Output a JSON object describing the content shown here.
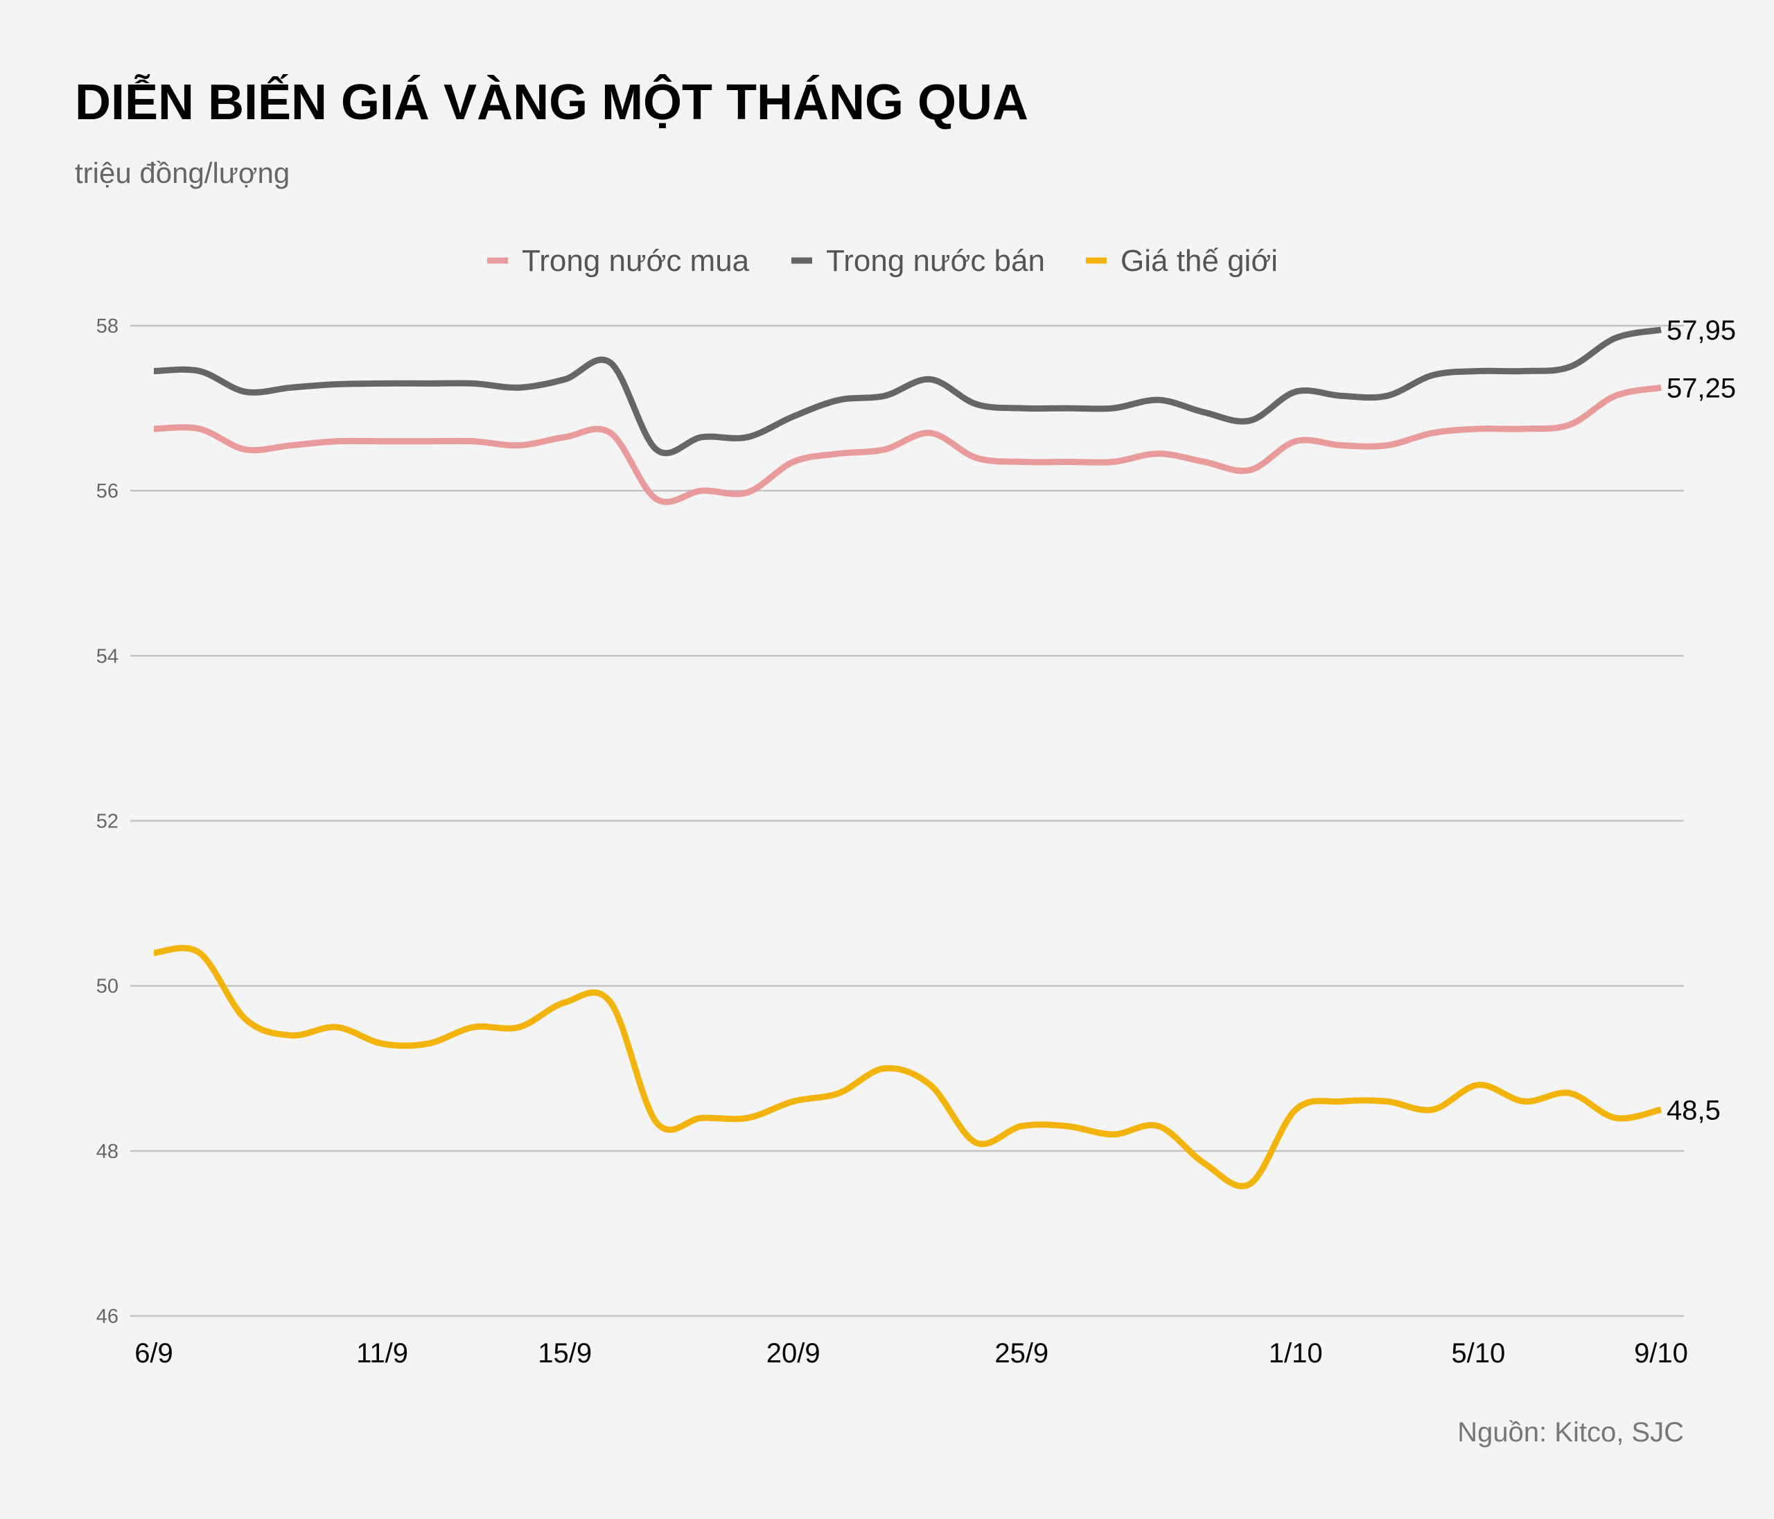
{
  "title": "DIỄN BIẾN GIÁ VÀNG MỘT THÁNG QUA",
  "subtitle": "triệu đồng/lượng",
  "source": "Nguồn: Kitco, SJC",
  "chart_data": {
    "type": "line",
    "title": "DIỄN BIẾN GIÁ VÀNG MỘT THÁNG QUA",
    "ylabel": "triệu đồng/lượng",
    "xlabel": "",
    "ylim": [
      46,
      58
    ],
    "yticks": [
      46,
      48,
      50,
      52,
      54,
      56,
      58
    ],
    "grid": true,
    "legend_position": "top-center",
    "x": [
      "6/9",
      "7/9",
      "8/9",
      "9/9",
      "10/9",
      "11/9",
      "12/9",
      "13/9",
      "14/9",
      "15/9",
      "16/9",
      "17/9",
      "18/9",
      "19/9",
      "20/9",
      "21/9",
      "22/9",
      "23/9",
      "24/9",
      "25/9",
      "26/9",
      "27/9",
      "28/9",
      "29/9",
      "30/9",
      "1/10",
      "2/10",
      "3/10",
      "4/10",
      "5/10",
      "6/10",
      "7/10",
      "8/10",
      "9/10"
    ],
    "xticks": [
      "6/9",
      "11/9",
      "15/9",
      "20/9",
      "25/9",
      "1/10",
      "5/10",
      "9/10"
    ],
    "series": [
      {
        "name": "Trong nước mua",
        "color": "#e99a9a",
        "end_label": "57,25",
        "values": [
          56.75,
          56.75,
          56.5,
          56.55,
          56.6,
          56.6,
          56.6,
          56.6,
          56.55,
          56.65,
          56.7,
          55.9,
          56.0,
          55.98,
          56.35,
          56.45,
          56.5,
          56.7,
          56.4,
          56.35,
          56.35,
          56.35,
          56.45,
          56.35,
          56.25,
          56.6,
          56.55,
          56.55,
          56.7,
          56.75,
          56.75,
          56.8,
          57.15,
          57.25
        ]
      },
      {
        "name": "Trong nước bán",
        "color": "#666666",
        "end_label": "57,95",
        "values": [
          57.45,
          57.45,
          57.2,
          57.25,
          57.29,
          57.3,
          57.3,
          57.3,
          57.25,
          57.35,
          57.55,
          56.5,
          56.65,
          56.65,
          56.9,
          57.1,
          57.15,
          57.35,
          57.05,
          57.0,
          57.0,
          57.0,
          57.1,
          56.95,
          56.85,
          57.2,
          57.15,
          57.15,
          57.4,
          57.45,
          57.45,
          57.5,
          57.85,
          57.95
        ]
      },
      {
        "name": "Giá thế giới",
        "color": "#f2b40c",
        "end_label": "48,5",
        "values": [
          50.4,
          50.4,
          49.6,
          49.4,
          49.5,
          49.3,
          49.3,
          49.5,
          49.5,
          49.8,
          49.8,
          48.35,
          48.4,
          48.4,
          48.6,
          48.7,
          49.0,
          48.8,
          48.1,
          48.3,
          48.3,
          48.2,
          48.3,
          47.85,
          47.6,
          48.5,
          48.6,
          48.6,
          48.5,
          48.8,
          48.6,
          48.7,
          48.4,
          48.5
        ]
      }
    ]
  }
}
